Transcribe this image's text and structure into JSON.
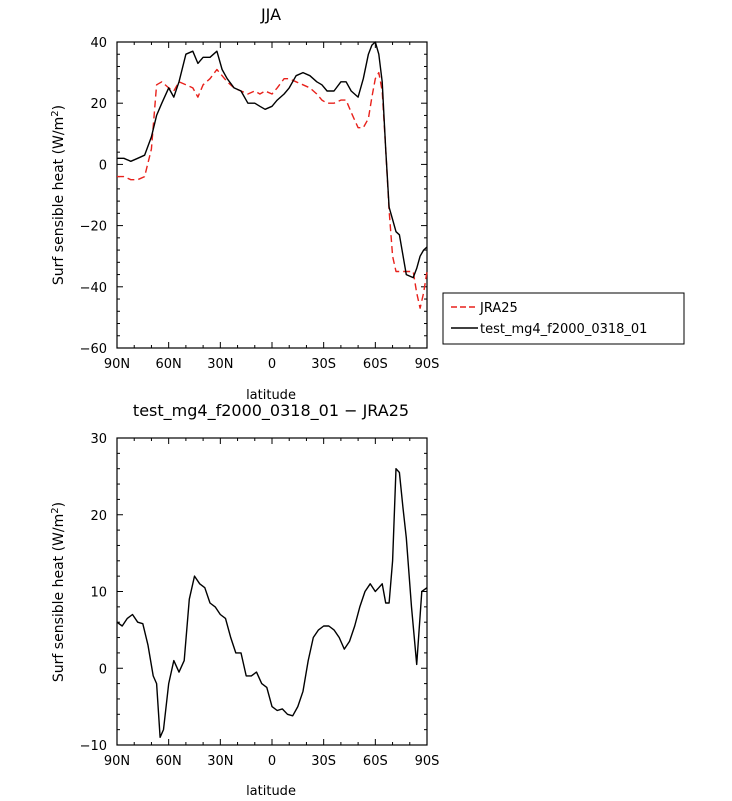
{
  "chart_data": [
    {
      "type": "line",
      "title": "JJA",
      "xlabel": "latitude",
      "ylabel": "Surf sensible heat (W/m",
      "ylabel_sup": "2",
      "ylabel_tail": ")",
      "xlim": [
        90,
        -90
      ],
      "ylim": [
        -60,
        40
      ],
      "x_ticks": [
        90,
        60,
        30,
        0,
        -30,
        -60,
        -90
      ],
      "x_tick_labels": [
        "90N",
        "60N",
        "30N",
        "0",
        "30S",
        "60S",
        "90S"
      ],
      "y_ticks": [
        40,
        20,
        0,
        -20,
        -40,
        -60
      ],
      "y_tick_labels": [
        "40",
        "20",
        "0",
        "−20",
        "−40",
        "−60"
      ],
      "legend_position": "right",
      "series": [
        {
          "name": "JRA25",
          "color": "#e8211b",
          "dash": "dashed",
          "x": [
            90,
            86,
            82,
            78,
            74,
            70,
            67,
            64,
            60,
            57,
            54,
            50,
            46,
            43,
            40,
            36,
            32,
            29,
            26,
            22,
            18,
            14,
            10,
            7,
            4,
            0,
            -3,
            -7,
            -10,
            -14,
            -18,
            -22,
            -26,
            -29,
            -32,
            -36,
            -40,
            -43,
            -46,
            -50,
            -53,
            -56,
            -58,
            -60,
            -62,
            -64,
            -66,
            -68,
            -70,
            -72,
            -74,
            -78,
            -82,
            -84,
            -86,
            -88,
            -90
          ],
          "y": [
            -4,
            -4,
            -5,
            -5,
            -4,
            5,
            26,
            27,
            25,
            24,
            27,
            26,
            25,
            22,
            26,
            28,
            31,
            29,
            27,
            25,
            24,
            23,
            24,
            23,
            24,
            23,
            25,
            28,
            28,
            27,
            26,
            25,
            23,
            21,
            20,
            20,
            21,
            21,
            17,
            12,
            12,
            15,
            22,
            28,
            30,
            24,
            5,
            -15,
            -30,
            -35,
            -35,
            -35,
            -35,
            -42,
            -47,
            -42,
            -35
          ]
        },
        {
          "name": "test_mg4_f2000_0318_01",
          "color": "#000000",
          "dash": "solid",
          "x": [
            90,
            86,
            82,
            78,
            74,
            70,
            67,
            64,
            60,
            57,
            54,
            50,
            46,
            43,
            40,
            36,
            32,
            29,
            26,
            22,
            18,
            14,
            10,
            7,
            4,
            0,
            -3,
            -7,
            -10,
            -14,
            -18,
            -22,
            -26,
            -29,
            -32,
            -36,
            -40,
            -43,
            -46,
            -50,
            -53,
            -56,
            -58,
            -60,
            -62,
            -64,
            -66,
            -68,
            -70,
            -72,
            -74,
            -78,
            -82,
            -84,
            -86,
            -88,
            -90
          ],
          "y": [
            2,
            2,
            1,
            2,
            3,
            9,
            16,
            20,
            25,
            22,
            27,
            36,
            37,
            33,
            35,
            35,
            37,
            31,
            28,
            25,
            24,
            20,
            20,
            19,
            18,
            19,
            21,
            23,
            25,
            29,
            30,
            29,
            27,
            26,
            24,
            24,
            27,
            27,
            24,
            22,
            28,
            36,
            39,
            40,
            36,
            27,
            5,
            -14,
            -18,
            -22,
            -23,
            -36,
            -37,
            -34,
            -30,
            -28,
            -27
          ]
        }
      ]
    },
    {
      "type": "line",
      "title": "test_mg4_f2000_0318_01  −  JRA25",
      "xlabel": "latitude",
      "ylabel": "Surf sensible heat (W/m",
      "ylabel_sup": "2",
      "ylabel_tail": ")",
      "xlim": [
        90,
        -90
      ],
      "ylim": [
        -10,
        30
      ],
      "x_ticks": [
        90,
        60,
        30,
        0,
        -30,
        -60,
        -90
      ],
      "x_tick_labels": [
        "90N",
        "60N",
        "30N",
        "0",
        "30S",
        "60S",
        "90S"
      ],
      "y_ticks": [
        30,
        20,
        10,
        0,
        -10
      ],
      "y_tick_labels": [
        "30",
        "20",
        "10",
        "0",
        "−10"
      ],
      "series": [
        {
          "color": "#000000",
          "dash": "solid",
          "x": [
            90,
            87,
            84,
            81,
            78,
            75,
            72,
            69,
            67,
            65,
            63,
            60,
            57,
            54,
            51,
            48,
            45,
            42,
            39,
            36,
            33,
            30,
            27,
            24,
            21,
            18,
            15,
            12,
            9,
            6,
            3,
            0,
            -3,
            -6,
            -9,
            -12,
            -15,
            -18,
            -21,
            -24,
            -27,
            -30,
            -33,
            -36,
            -39,
            -42,
            -45,
            -48,
            -51,
            -54,
            -57,
            -60,
            -62,
            -64,
            -66,
            -68,
            -70,
            -72,
            -74,
            -76,
            -78,
            -81,
            -84,
            -87,
            -90
          ],
          "y": [
            6,
            5.5,
            6.5,
            7,
            6,
            5.8,
            3,
            -1,
            -2,
            -9,
            -8,
            -2,
            1,
            -0.5,
            1,
            9,
            12,
            11,
            10.5,
            8.5,
            8,
            7,
            6.5,
            4,
            2,
            2,
            -1,
            -1,
            -0.5,
            -2,
            -2.5,
            -5,
            -5.5,
            -5.3,
            -6,
            -6.2,
            -5,
            -3,
            1,
            4,
            5,
            5.5,
            5.5,
            5,
            4,
            2.5,
            3.5,
            5.5,
            8,
            10,
            11,
            10,
            10.5,
            11,
            8.5,
            8.5,
            14,
            26,
            25.5,
            21,
            17,
            8,
            0.5,
            10,
            10.5
          ]
        }
      ]
    }
  ]
}
